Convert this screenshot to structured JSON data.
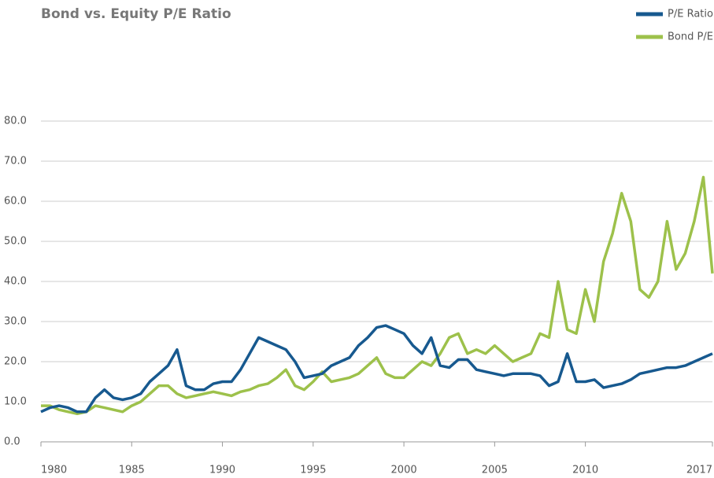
{
  "chart_data": {
    "type": "line",
    "title": "Bond vs. Equity P/E Ratio",
    "x": [
      1980,
      1980.5,
      1981,
      1981.5,
      1982,
      1982.5,
      1983,
      1983.5,
      1984,
      1984.5,
      1985,
      1985.5,
      1986,
      1986.5,
      1987,
      1987.5,
      1988,
      1988.5,
      1989,
      1989.5,
      1990,
      1990.5,
      1991,
      1991.5,
      1992,
      1992.5,
      1993,
      1993.5,
      1994,
      1994.5,
      1995,
      1995.5,
      1996,
      1996.5,
      1997,
      1997.5,
      1998,
      1998.5,
      1999,
      1999.5,
      2000,
      2000.5,
      2001,
      2001.5,
      2002,
      2002.5,
      2003,
      2003.5,
      2004,
      2004.5,
      2005,
      2005.5,
      2006,
      2006.5,
      2007,
      2007.5,
      2008,
      2008.5,
      2009,
      2009.5,
      2010,
      2010.5,
      2011,
      2011.5,
      2012,
      2012.5,
      2013,
      2013.5,
      2014,
      2014.5,
      2015,
      2015.5,
      2016,
      2016.5,
      2017
    ],
    "series": [
      {
        "name": "P/E Ratio",
        "color": "#17598f",
        "values": [
          7.5,
          8.5,
          9,
          8.5,
          7.5,
          7.5,
          11,
          13,
          11,
          10.5,
          11,
          12,
          15,
          17,
          19,
          23,
          14,
          13,
          13,
          14.5,
          15,
          15,
          18,
          22,
          26,
          25,
          24,
          23,
          20,
          16,
          16.5,
          17,
          19,
          20,
          21,
          24,
          26,
          28.5,
          29,
          28,
          27,
          24,
          22,
          26,
          19,
          18.5,
          20.5,
          20.5,
          18,
          17.5,
          17,
          16.5,
          17,
          17,
          17,
          16.5,
          14,
          15,
          22,
          15,
          15,
          15.5,
          13.5,
          14,
          14.5,
          15.5,
          17,
          17.5,
          18,
          18.5,
          18.5,
          19,
          20,
          21,
          22
        ]
      },
      {
        "name": "Bond P/E",
        "color": "#9dc14b",
        "values": [
          9,
          9,
          8,
          7.5,
          7,
          7.5,
          9,
          8.5,
          8,
          7.5,
          9,
          10,
          12,
          14,
          14,
          12,
          11,
          11.5,
          12,
          12.5,
          12,
          11.5,
          12.5,
          13,
          14,
          14.5,
          16,
          18,
          14,
          13,
          15,
          17.5,
          15,
          15.5,
          16,
          17,
          19,
          21,
          17,
          16,
          16,
          18,
          20,
          19,
          22,
          26,
          27,
          22,
          23,
          22,
          24,
          22,
          20,
          21,
          22,
          27,
          26,
          40,
          28,
          27,
          38,
          30,
          45,
          52,
          62,
          55,
          38,
          36,
          40,
          55,
          43,
          47,
          55,
          66,
          42
        ]
      }
    ],
    "xlim": [
      1980,
      2017
    ],
    "xticks": [
      1980,
      1985,
      1990,
      1995,
      2000,
      2005,
      2010,
      2017
    ],
    "ylim": [
      0,
      80
    ],
    "yticks": [
      {
        "value": 0,
        "label": "0.0"
      },
      {
        "value": 10,
        "label": "10.0"
      },
      {
        "value": 20,
        "label": "20.0"
      },
      {
        "value": 30,
        "label": "30.0"
      },
      {
        "value": 40,
        "label": "40.0"
      },
      {
        "value": 50,
        "label": "50.0"
      },
      {
        "value": 60,
        "label": "60.0"
      },
      {
        "value": 70,
        "label": "70.0"
      },
      {
        "value": 80,
        "label": "80.0"
      }
    ],
    "grid": true
  }
}
